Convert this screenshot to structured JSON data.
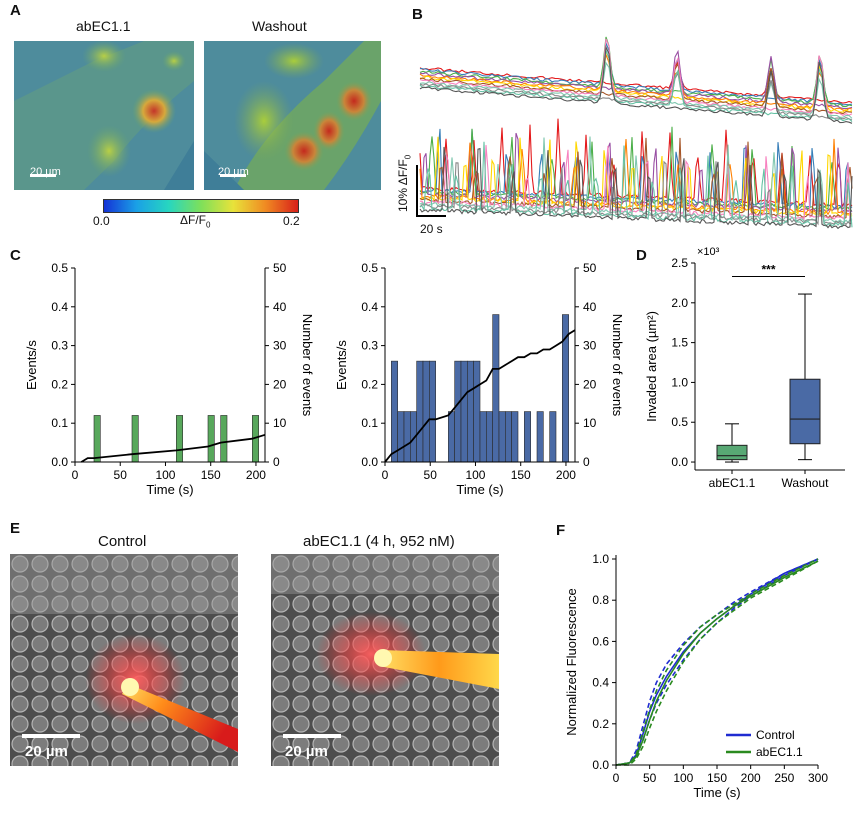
{
  "panels": {
    "A": {
      "label": "A",
      "left_title": "abEC1.1",
      "right_title": "Washout",
      "scale_left": "20 µm",
      "scale_right": "20 µm",
      "colorbar": {
        "min": "0.0",
        "max": "0.2",
        "label": "ΔF/F",
        "label_sub": "0"
      }
    },
    "B": {
      "label": "B",
      "scale_y": "10% ΔF/F",
      "scale_y_sub": "0",
      "scale_x": "20 s",
      "trace_colors": [
        "#e41a1c",
        "#377eb8",
        "#4daf4a",
        "#984ea3",
        "#ff7f00",
        "#ffd700",
        "#a65628",
        "#f781bf",
        "#7fc7af",
        "#888888",
        "#66c2a5",
        "#555555"
      ]
    },
    "C": {
      "label": "C"
    },
    "D": {
      "label": "D"
    },
    "E": {
      "label": "E",
      "left_title": "Control",
      "right_title": "abEC1.1 (4 h, 952 nM)",
      "scale_left": "20 µm",
      "scale_right": "20 µm"
    },
    "F": {
      "label": "F"
    }
  },
  "chart_data": [
    {
      "id": "C-left",
      "type": "bar",
      "xlabel": "Time (s)",
      "ylabel": "Events/s",
      "ylabel_right": "Number of events",
      "xlim": [
        0,
        210
      ],
      "ylim": [
        0,
        0.5
      ],
      "ylim_right": [
        0,
        50
      ],
      "xticks": [
        0,
        50,
        100,
        150,
        200
      ],
      "yticks": [
        0.0,
        0.1,
        0.2,
        0.3,
        0.4,
        0.5
      ],
      "yticks_right": [
        0,
        10,
        20,
        30,
        40,
        50
      ],
      "bar_color": "#58a85c",
      "bin_width": 7,
      "bars": [
        {
          "x": 21,
          "y": 0.12
        },
        {
          "x": 63,
          "y": 0.12
        },
        {
          "x": 112,
          "y": 0.12
        },
        {
          "x": 147,
          "y": 0.12
        },
        {
          "x": 161,
          "y": 0.12
        },
        {
          "x": 196,
          "y": 0.12
        }
      ],
      "cumulative": {
        "x": [
          7,
          14,
          21,
          63,
          112,
          147,
          161,
          196,
          210
        ],
        "y": [
          0,
          1,
          1,
          2,
          3,
          4,
          5,
          6,
          7
        ]
      }
    },
    {
      "id": "C-right",
      "type": "bar",
      "xlabel": "Time (s)",
      "ylabel": "Events/s",
      "ylabel_right": "Number of events",
      "xlim": [
        0,
        210
      ],
      "ylim": [
        0,
        0.5
      ],
      "ylim_right": [
        0,
        50
      ],
      "xticks": [
        0,
        50,
        100,
        150,
        200
      ],
      "yticks": [
        0.0,
        0.1,
        0.2,
        0.3,
        0.4,
        0.5
      ],
      "yticks_right": [
        0,
        10,
        20,
        30,
        40,
        50
      ],
      "bar_color": "#4a6aa5",
      "bin_width": 7,
      "bars": [
        {
          "x": 7,
          "y": 0.26
        },
        {
          "x": 14,
          "y": 0.13
        },
        {
          "x": 21,
          "y": 0.13
        },
        {
          "x": 28,
          "y": 0.13
        },
        {
          "x": 35,
          "y": 0.26
        },
        {
          "x": 42,
          "y": 0.26
        },
        {
          "x": 49,
          "y": 0.26
        },
        {
          "x": 70,
          "y": 0.13
        },
        {
          "x": 77,
          "y": 0.26
        },
        {
          "x": 84,
          "y": 0.26
        },
        {
          "x": 91,
          "y": 0.26
        },
        {
          "x": 98,
          "y": 0.26
        },
        {
          "x": 105,
          "y": 0.13
        },
        {
          "x": 112,
          "y": 0.13
        },
        {
          "x": 119,
          "y": 0.38
        },
        {
          "x": 126,
          "y": 0.13
        },
        {
          "x": 133,
          "y": 0.13
        },
        {
          "x": 140,
          "y": 0.13
        },
        {
          "x": 154,
          "y": 0.13
        },
        {
          "x": 168,
          "y": 0.13
        },
        {
          "x": 182,
          "y": 0.13
        },
        {
          "x": 196,
          "y": 0.38
        }
      ],
      "cumulative": {
        "x": [
          0,
          7,
          14,
          21,
          28,
          35,
          42,
          49,
          56,
          70,
          77,
          84,
          91,
          98,
          105,
          112,
          119,
          126,
          133,
          140,
          147,
          154,
          161,
          168,
          175,
          182,
          189,
          196,
          203,
          210
        ],
        "y": [
          0,
          2,
          3,
          4,
          5,
          7,
          9,
          11,
          11,
          12,
          14,
          16,
          18,
          19,
          20,
          21,
          24,
          24,
          25,
          26,
          27,
          27,
          28,
          28,
          29,
          29,
          30,
          31,
          33,
          34
        ]
      }
    },
    {
      "id": "D",
      "type": "box",
      "ylabel": "Invaded area (µm²)",
      "yscale_label": "×10³",
      "categories": [
        "abEC1.1",
        "Washout"
      ],
      "ylim": [
        -0.1,
        2.5
      ],
      "yticks": [
        0.0,
        0.5,
        1.0,
        1.5,
        2.0,
        2.5
      ],
      "boxes": [
        {
          "name": "abEC1.1",
          "min": 0.0,
          "q1": 0.03,
          "median": 0.08,
          "q3": 0.21,
          "max": 0.48,
          "color": "#58a874"
        },
        {
          "name": "Washout",
          "min": 0.03,
          "q1": 0.23,
          "median": 0.54,
          "q3": 1.04,
          "max": 2.11,
          "color": "#4a6aa5"
        }
      ],
      "significance": "***"
    },
    {
      "id": "F",
      "type": "line",
      "xlabel": "Time (s)",
      "ylabel": "Normalized Fluorescence",
      "xlim": [
        0,
        300
      ],
      "ylim": [
        0,
        1.0
      ],
      "xticks": [
        0,
        50,
        100,
        150,
        200,
        250,
        300
      ],
      "yticks": [
        0.0,
        0.2,
        0.4,
        0.6,
        0.8,
        1.0
      ],
      "legend": [
        {
          "name": "Control",
          "color": "#1f2bd1"
        },
        {
          "name": "abEC1.1",
          "color": "#2a8a1f"
        }
      ],
      "series": [
        {
          "name": "Control",
          "style": "solid",
          "color": "#1f2bd1",
          "x": [
            0,
            20,
            30,
            40,
            50,
            60,
            75,
            100,
            125,
            150,
            175,
            200,
            250,
            300
          ],
          "y": [
            0,
            0.01,
            0.05,
            0.15,
            0.26,
            0.34,
            0.43,
            0.55,
            0.64,
            0.71,
            0.77,
            0.83,
            0.93,
            1.0
          ]
        },
        {
          "name": "Control",
          "style": "dashed",
          "color": "#1f2bd1",
          "x": [
            0,
            20,
            30,
            40,
            50,
            60,
            75,
            100,
            125,
            150,
            175,
            200,
            250,
            300
          ],
          "y": [
            0,
            0.01,
            0.07,
            0.19,
            0.31,
            0.4,
            0.49,
            0.59,
            0.67,
            0.73,
            0.79,
            0.84,
            0.93,
            1.0
          ]
        },
        {
          "name": "Control",
          "style": "dashed",
          "color": "#1f2bd1",
          "x": [
            0,
            20,
            30,
            40,
            50,
            60,
            75,
            100,
            125,
            150,
            175,
            200,
            250,
            300
          ],
          "y": [
            0,
            0.01,
            0.04,
            0.12,
            0.22,
            0.3,
            0.39,
            0.51,
            0.61,
            0.69,
            0.76,
            0.82,
            0.92,
            1.0
          ]
        },
        {
          "name": "abEC1.1",
          "style": "solid",
          "color": "#2a8a1f",
          "x": [
            0,
            20,
            30,
            40,
            50,
            60,
            75,
            100,
            125,
            150,
            175,
            200,
            250,
            300
          ],
          "y": [
            0,
            0.01,
            0.04,
            0.12,
            0.22,
            0.31,
            0.41,
            0.54,
            0.64,
            0.71,
            0.77,
            0.82,
            0.91,
            0.99
          ]
        },
        {
          "name": "abEC1.1",
          "style": "dashed",
          "color": "#2a8a1f",
          "x": [
            0,
            20,
            30,
            40,
            50,
            60,
            75,
            100,
            125,
            150,
            175,
            200,
            250,
            300
          ],
          "y": [
            0,
            0.01,
            0.05,
            0.16,
            0.27,
            0.36,
            0.46,
            0.58,
            0.67,
            0.73,
            0.78,
            0.83,
            0.92,
            1.0
          ]
        },
        {
          "name": "abEC1.1",
          "style": "dashed",
          "color": "#2a8a1f",
          "x": [
            0,
            20,
            30,
            40,
            50,
            60,
            75,
            100,
            125,
            150,
            175,
            200,
            250,
            300
          ],
          "y": [
            0,
            0.0,
            0.03,
            0.09,
            0.18,
            0.26,
            0.36,
            0.5,
            0.61,
            0.69,
            0.75,
            0.81,
            0.9,
            0.99
          ]
        }
      ]
    }
  ]
}
